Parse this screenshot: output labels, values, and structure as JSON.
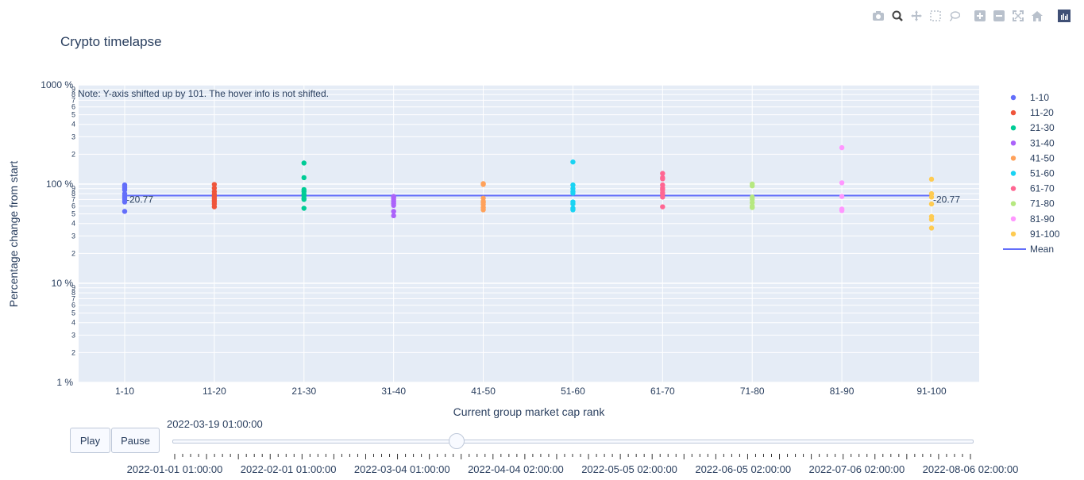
{
  "chart_data": {
    "type": "scatter",
    "title": "Crypto timelapse",
    "xlabel": "Current group market cap rank",
    "ylabel": "Percentage change from start",
    "y_scale": "log",
    "ylim": [
      1,
      1000
    ],
    "y_major_ticks": [
      {
        "value": 1,
        "label": "1 %"
      },
      {
        "value": 10,
        "label": "10 %"
      },
      {
        "value": 100,
        "label": "100 %"
      },
      {
        "value": 1000,
        "label": "1000 %"
      }
    ],
    "y_minor_ticks": [
      {
        "value": 2,
        "label": "2"
      },
      {
        "value": 3,
        "label": "3"
      },
      {
        "value": 4,
        "label": "4"
      },
      {
        "value": 5,
        "label": "5"
      },
      {
        "value": 6,
        "label": "6"
      },
      {
        "value": 7,
        "label": "7"
      },
      {
        "value": 8,
        "label": "8"
      },
      {
        "value": 9,
        "label": "9"
      },
      {
        "value": 20,
        "label": "2"
      },
      {
        "value": 30,
        "label": "3"
      },
      {
        "value": 40,
        "label": "4"
      },
      {
        "value": 50,
        "label": "5"
      },
      {
        "value": 60,
        "label": "6"
      },
      {
        "value": 70,
        "label": "7"
      },
      {
        "value": 80,
        "label": "8"
      },
      {
        "value": 90,
        "label": "9"
      },
      {
        "value": 200,
        "label": "2"
      },
      {
        "value": 300,
        "label": "3"
      },
      {
        "value": 400,
        "label": "4"
      },
      {
        "value": 500,
        "label": "5"
      },
      {
        "value": 600,
        "label": "6"
      },
      {
        "value": 700,
        "label": "7"
      },
      {
        "value": 800,
        "label": "8"
      },
      {
        "value": 900,
        "label": "9"
      }
    ],
    "categories": [
      "1-10",
      "11-20",
      "21-30",
      "31-40",
      "41-50",
      "51-60",
      "61-70",
      "71-80",
      "81-90",
      "91-100"
    ],
    "grid": true,
    "legend_position": "right",
    "annotation": "Note: Y-axis shifted up by 101. The hover info is not shifted.",
    "series": [
      {
        "name": "1-10",
        "color": "#636efa",
        "values": [
          98,
          94,
          91,
          87,
          80,
          76,
          73,
          70,
          66,
          53
        ]
      },
      {
        "name": "11-20",
        "color": "#ef553b",
        "values": [
          99,
          91,
          84,
          79,
          75,
          72,
          69,
          66,
          63,
          59
        ]
      },
      {
        "name": "21-30",
        "color": "#00cc96",
        "values": [
          163,
          116,
          88,
          84,
          79,
          76,
          72,
          70,
          57
        ]
      },
      {
        "name": "31-40",
        "color": "#ab63fa",
        "values": [
          75,
          73,
          70,
          67,
          64,
          61,
          53,
          48
        ]
      },
      {
        "name": "41-50",
        "color": "#ffa15a",
        "values": [
          101,
          99,
          72,
          67,
          65,
          62,
          58,
          55
        ]
      },
      {
        "name": "51-60",
        "color": "#19d3f3",
        "values": [
          167,
          98,
          90,
          84,
          81,
          66,
          63,
          57,
          55
        ]
      },
      {
        "name": "61-70",
        "color": "#ff6692",
        "values": [
          128,
          116,
          113,
          98,
          91,
          87,
          82,
          79,
          74,
          59
        ]
      },
      {
        "name": "71-80",
        "color": "#b6e880",
        "values": [
          100,
          96,
          74,
          70,
          65,
          60,
          58
        ]
      },
      {
        "name": "81-90",
        "color": "#ff97ff",
        "values": [
          233,
          103,
          75,
          56,
          54
        ]
      },
      {
        "name": "91-100",
        "color": "#fecb52",
        "values": [
          112,
          80,
          74,
          63,
          47,
          44,
          36
        ]
      }
    ],
    "mean": {
      "name": "Mean",
      "color": "#636efa",
      "value": 76.5,
      "label": "-20.77"
    }
  },
  "modebar": {
    "icons": [
      "camera-icon",
      "zoom-icon",
      "pan-icon",
      "box-select-icon",
      "lasso-select-icon",
      "zoom-in-icon",
      "zoom-out-icon",
      "autoscale-icon",
      "reset-axes-icon",
      "plotly-logo-icon"
    ]
  },
  "controls": {
    "play_label": "Play",
    "pause_label": "Pause",
    "current_frame": "2022-03-19 01:00:00",
    "slider_fraction": 0.3547,
    "slider_labels": [
      "2022-01-01 01:00:00",
      "2022-02-01 01:00:00",
      "2022-03-04 01:00:00",
      "2022-04-04 02:00:00",
      "2022-05-05 02:00:00",
      "2022-06-05 02:00:00",
      "2022-07-06 02:00:00",
      "2022-08-06 02:00:00"
    ]
  }
}
